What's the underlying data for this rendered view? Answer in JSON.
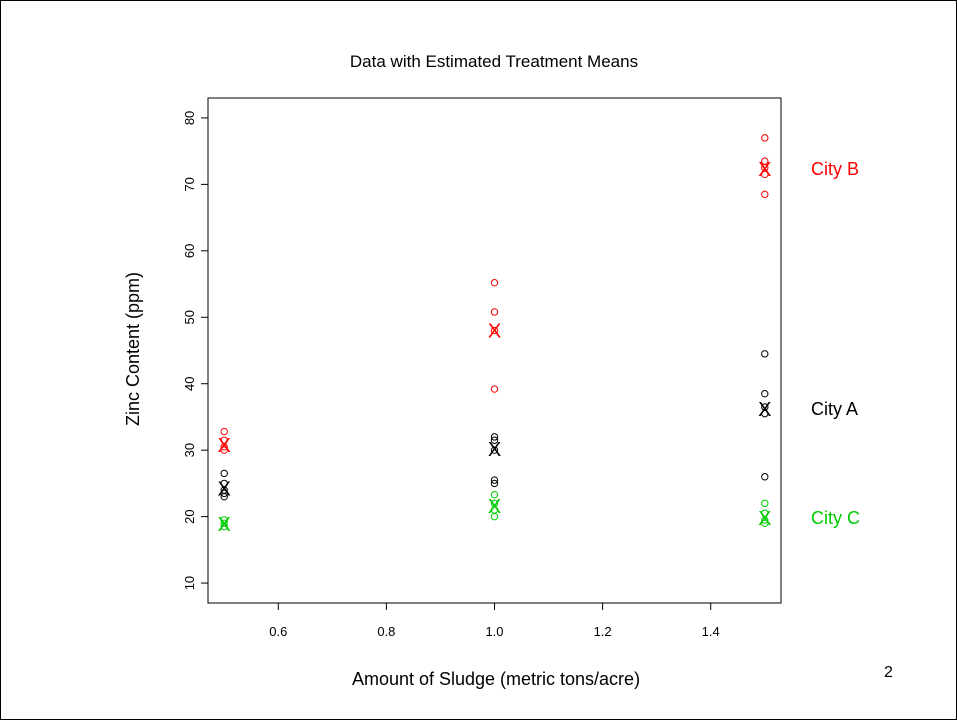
{
  "slide": {
    "page_number": "2"
  },
  "chart_data": {
    "type": "scatter",
    "title": "Data with Estimated Treatment Means",
    "xlabel": "Amount of Sludge (metric tons/acre)",
    "ylabel": "Zinc Content (ppm)",
    "xlim": [
      0.47,
      1.53
    ],
    "ylim": [
      7,
      83
    ],
    "x_ticks": [
      0.6,
      0.8,
      1.0,
      1.2,
      1.4
    ],
    "x_tick_labels": [
      "0.6",
      "0.8",
      "1.0",
      "1.2",
      "1.4"
    ],
    "y_ticks": [
      10,
      20,
      30,
      40,
      50,
      60,
      70,
      80
    ],
    "y_tick_labels": [
      "10",
      "20",
      "30",
      "40",
      "50",
      "60",
      "70",
      "80"
    ],
    "grid": false,
    "mean_marker": "X",
    "series": [
      {
        "name": "City A",
        "color": "#000000",
        "points": [
          [
            0.5,
            26.5
          ],
          [
            0.5,
            25.0
          ],
          [
            0.5,
            24.0
          ],
          [
            0.5,
            23.5
          ],
          [
            0.5,
            23.0
          ],
          [
            1.0,
            32.0
          ],
          [
            1.0,
            31.5
          ],
          [
            1.0,
            30.0
          ],
          [
            1.0,
            25.5
          ],
          [
            1.0,
            25.0
          ],
          [
            1.5,
            44.5
          ],
          [
            1.5,
            38.5
          ],
          [
            1.5,
            36.5
          ],
          [
            1.5,
            35.5
          ],
          [
            1.5,
            26.0
          ]
        ],
        "means": [
          [
            0.5,
            24.2
          ],
          [
            1.0,
            30.2
          ],
          [
            1.5,
            36.2
          ]
        ]
      },
      {
        "name": "City B",
        "color": "#ff0000",
        "points": [
          [
            0.5,
            32.8
          ],
          [
            0.5,
            31.5
          ],
          [
            0.5,
            30.5
          ],
          [
            0.5,
            30.0
          ],
          [
            1.0,
            55.2
          ],
          [
            1.0,
            50.8
          ],
          [
            1.0,
            48.0
          ],
          [
            1.0,
            39.2
          ],
          [
            1.5,
            77.0
          ],
          [
            1.5,
            73.5
          ],
          [
            1.5,
            72.5
          ],
          [
            1.5,
            71.5
          ],
          [
            1.5,
            68.5
          ]
        ],
        "means": [
          [
            0.5,
            30.8
          ],
          [
            1.0,
            48.0
          ],
          [
            1.5,
            72.3
          ]
        ]
      },
      {
        "name": "City C",
        "color": "#00cc00",
        "points": [
          [
            0.5,
            19.5
          ],
          [
            0.5,
            19.0
          ],
          [
            0.5,
            18.5
          ],
          [
            1.0,
            23.3
          ],
          [
            1.0,
            22.0
          ],
          [
            1.0,
            21.0
          ],
          [
            1.0,
            20.0
          ],
          [
            1.5,
            22.0
          ],
          [
            1.5,
            20.5
          ],
          [
            1.5,
            19.5
          ],
          [
            1.5,
            19.0
          ]
        ],
        "means": [
          [
            0.5,
            18.9
          ],
          [
            1.0,
            21.6
          ],
          [
            1.5,
            19.8
          ]
        ]
      }
    ]
  }
}
